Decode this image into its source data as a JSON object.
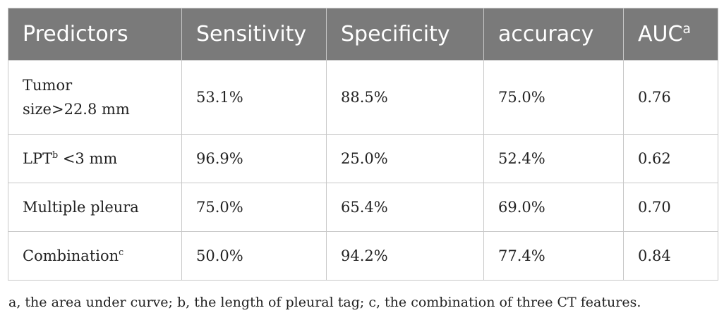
{
  "table": {
    "headers": {
      "predictors": "Predictors",
      "sensitivity": "Sensitivity",
      "specificity": "Specificity",
      "accuracy": "accuracy",
      "auc": "AUC",
      "auc_sup": "a"
    },
    "rows": [
      {
        "predictor_line1": "Tumor",
        "predictor_line2": "size>22.8 mm",
        "sensitivity": "53.1%",
        "specificity": "88.5%",
        "accuracy": "75.0%",
        "auc": "0.76"
      },
      {
        "predictor": "LPT",
        "predictor_sup": "b",
        "predictor_suffix": " <3 mm",
        "sensitivity": "96.9%",
        "specificity": "25.0%",
        "accuracy": "52.4%",
        "auc": "0.62"
      },
      {
        "predictor": "Multiple pleura",
        "sensitivity": "75.0%",
        "specificity": "65.4%",
        "accuracy": "69.0%",
        "auc": "0.70"
      },
      {
        "predictor": "Combination",
        "predictor_sup": "c",
        "sensitivity": "50.0%",
        "specificity": "94.2%",
        "accuracy": "77.4%",
        "auc": "0.84"
      }
    ]
  },
  "footnote": "a, the area under curve; b, the length of pleural tag; c, the combination of three CT features."
}
